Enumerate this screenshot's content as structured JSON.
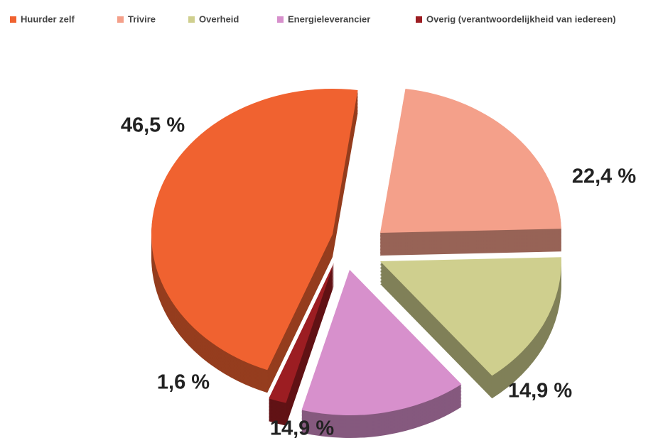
{
  "chart_data": {
    "type": "pie",
    "categories": [
      "Huurder zelf",
      "Trivire",
      "Overheid",
      "Energieleverancier",
      "Overig (verantwoordelijkheid van iedereen)"
    ],
    "values": [
      46.5,
      22.4,
      14.9,
      14.9,
      1.6
    ],
    "value_labels": [
      "46,5 %",
      "22,4 %",
      "14,9 %",
      "14,9 %",
      "1,6 %"
    ],
    "colors": [
      "#f06230",
      "#f4a08a",
      "#cfcf8e",
      "#d790cc",
      "#9c1d22"
    ],
    "legend": "top"
  }
}
